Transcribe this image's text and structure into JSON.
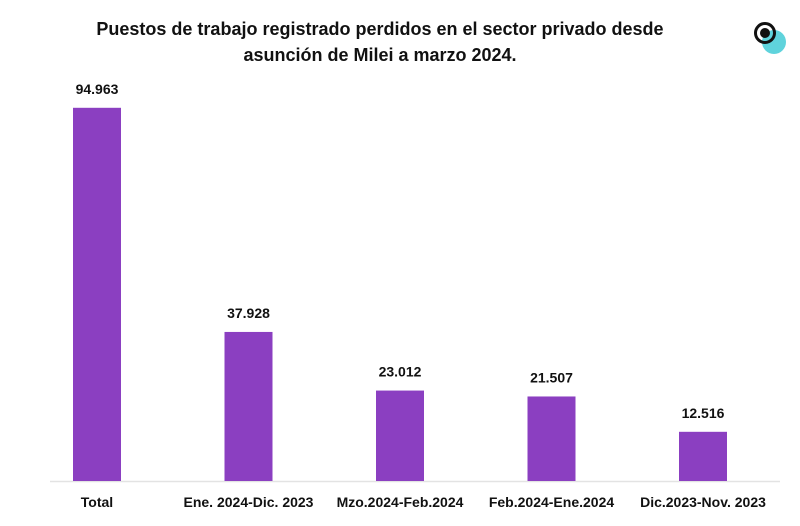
{
  "chart_data": {
    "type": "bar",
    "title": "Puestos de trabajo registrado perdidos en el sector privado desde asunción de Milei a marzo 2024.",
    "categories": [
      "Total",
      "Ene. 2024-Dic. 2023",
      "Mzo.2024-Feb.2024",
      "Feb.2024-Ene.2024",
      "Dic.2023-Nov. 2023"
    ],
    "values": [
      94963,
      37928,
      23012,
      21507,
      12516
    ],
    "data_labels": [
      "94.963",
      "37.928",
      "23.012",
      "21.507",
      "12.516"
    ],
    "ylim": [
      0,
      100000
    ],
    "grid": false,
    "legend": "none",
    "colors": {
      "bar": "#8b3fc1",
      "axis": "#e3e3e3",
      "logo_accent": "#5fd3dc"
    }
  },
  "logo": {
    "icon": "circle-logo-icon"
  }
}
